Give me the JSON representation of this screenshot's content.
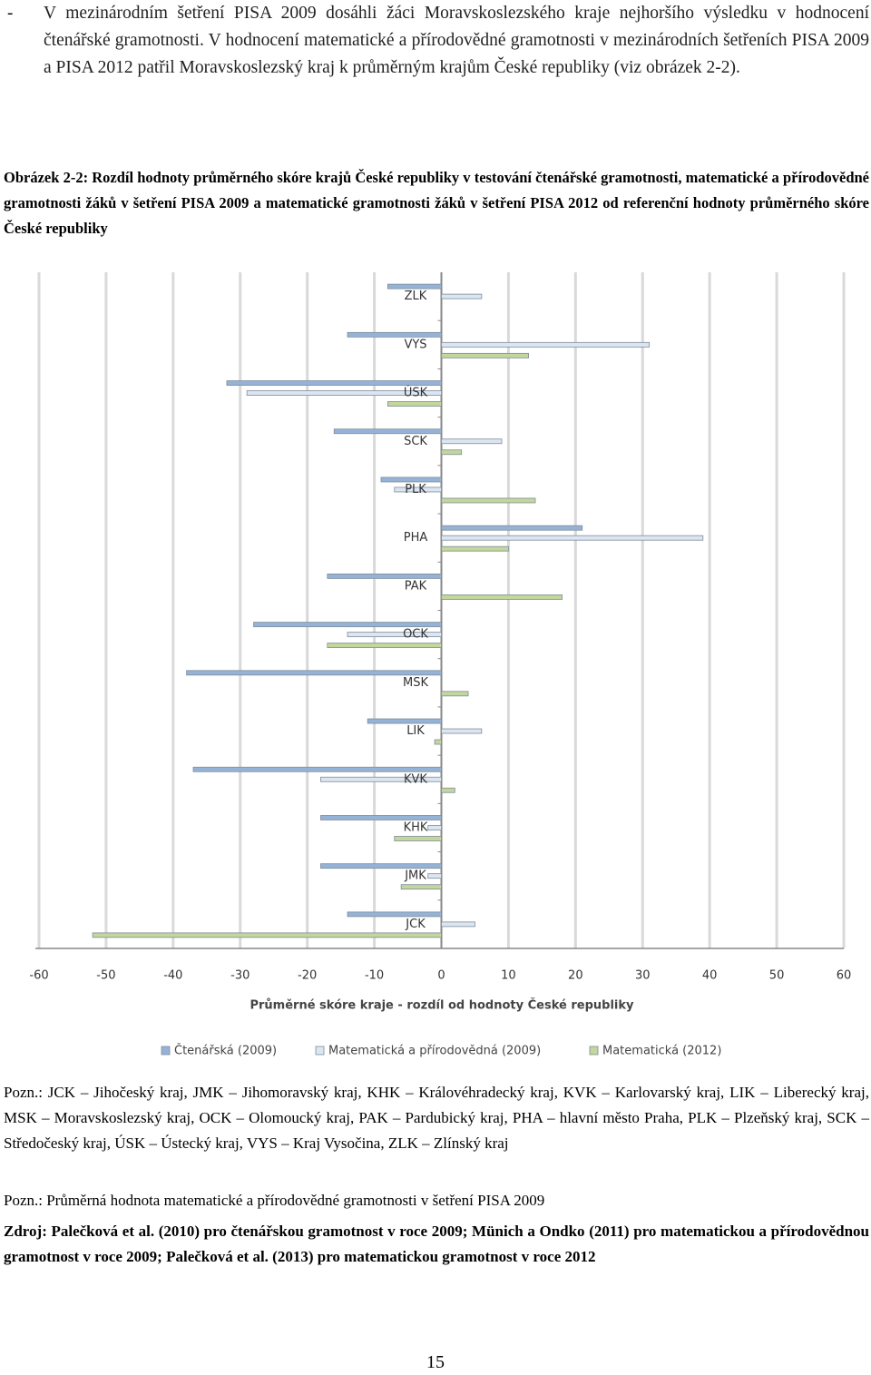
{
  "document": {
    "bullet": "-",
    "paragraph": "V mezinárodním šetření PISA 2009 dosáhli žáci Moravskoslezského kraje nejhoršího výsledku v hodnocení čtenářské gramotnosti. V hodnocení matematické a přírodovědné gramotnosti v mezinárodních šetřeních PISA 2009 a PISA 2012 patřil Moravskoslezský kraj k průměrným krajům České republiky (viz obrázek 2-2).",
    "caption": "Obrázek 2-2: Rozdíl hodnoty průměrného skóre krajů České republiky v testování čtenářské gramotnosti, matematické a přírodovědné gramotnosti žáků v šetření PISA 2009 a matematické gramotnosti žáků v šetření PISA 2012 od referenční hodnoty průměrného skóre České republiky",
    "notes": [
      "Pozn.: JCK – Jihočeský kraj, JMK – Jihomoravský kraj, KHK – Královéhradecký kraj, KVK – Karlovarský kraj, LIK – Liberecký kraj, MSK – Moravskoslezský kraj, OCK – Olomoucký kraj, PAK – Pardubický kraj, PHA – hlavní město Praha, PLK – Plzeňský kraj, SCK – Středočeský kraj, ÚSK – Ústecký kraj, VYS – Kraj Vysočina, ZLK – Zlínský kraj",
      "Pozn.: Průměrná hodnota matematické a přírodovědné gramotnosti v šetření PISA 2009"
    ],
    "source": "Zdroj: Palečková et al. (2010) pro čtenářskou gramotnost v roce 2009; Münich a Ondko (2011) pro matematickou a přírodovědnou gramotnost v roce 2009; Palečková et al. (2013) pro matematickou gramotnost v roce 2012",
    "page_number": "15"
  },
  "chart_data": {
    "type": "hbar",
    "x_label": "Průměrné skóre kraje - rozdíl od hodnoty České republiky",
    "categories": [
      "JCK",
      "JMK",
      "KHK",
      "KVK",
      "LIK",
      "MSK",
      "OCK",
      "PAK",
      "PHA",
      "PLK",
      "SCK",
      "ÚSK",
      "VYS",
      "ZLK"
    ],
    "series": [
      {
        "name": "Čtenářská (2009)",
        "color": "#95b3d7",
        "values": [
          -14,
          -18,
          -18,
          -37,
          -11,
          -38,
          -28,
          -17,
          21,
          -9,
          -16,
          -32,
          -14,
          -8
        ]
      },
      {
        "name": "Matematická a přírodovědná (2009)",
        "color": "#dce6f2",
        "values": [
          5,
          -2,
          -2,
          -18,
          6,
          0,
          -14,
          0,
          39,
          -7,
          9,
          -29,
          31,
          6
        ]
      },
      {
        "name": "Matematická (2012)",
        "color": "#c3d69b",
        "values": [
          -52,
          -6,
          -7,
          2,
          -1,
          4,
          -17,
          18,
          10,
          14,
          3,
          -8,
          13,
          0
        ]
      }
    ],
    "xlim": [
      -60,
      60
    ],
    "xticks": [
      -60,
      -50,
      -40,
      -30,
      -20,
      -10,
      0,
      10,
      20,
      30,
      40,
      50,
      60
    ],
    "grid": true,
    "legend": "bottom"
  }
}
